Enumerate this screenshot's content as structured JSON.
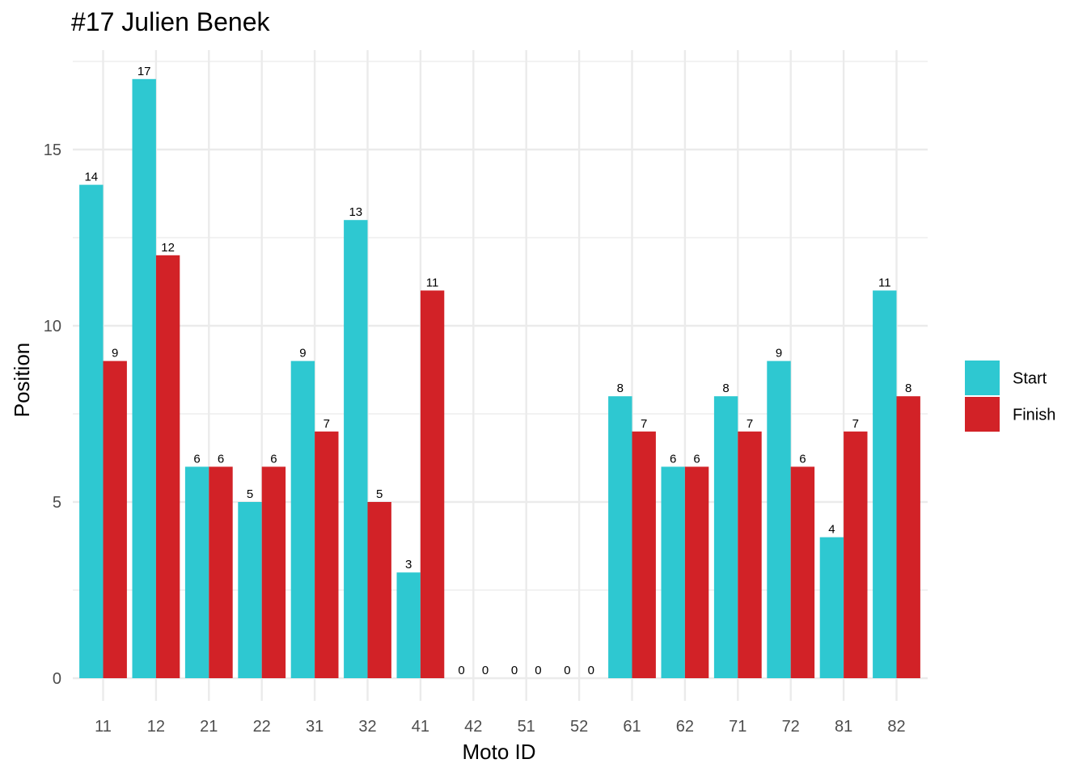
{
  "chart_data": {
    "type": "bar",
    "title": "#17 Julien Benek",
    "xlabel": "Moto ID",
    "ylabel": "Position",
    "categories": [
      "11",
      "12",
      "21",
      "22",
      "31",
      "32",
      "41",
      "42",
      "51",
      "52",
      "61",
      "62",
      "71",
      "72",
      "81",
      "82"
    ],
    "series": [
      {
        "name": "Start",
        "color": "#2EC8D1",
        "values": [
          14,
          17,
          6,
          5,
          9,
          13,
          3,
          0,
          0,
          0,
          8,
          6,
          8,
          9,
          4,
          11
        ]
      },
      {
        "name": "Finish",
        "color": "#D22227",
        "values": [
          9,
          12,
          6,
          6,
          7,
          5,
          11,
          0,
          0,
          0,
          7,
          6,
          7,
          6,
          7,
          8
        ]
      }
    ],
    "ylim": [
      0,
      17.5
    ],
    "yticks": [
      0,
      5,
      10,
      15
    ],
    "grid": true,
    "data_labels": true,
    "legend_position": "right",
    "grid_color": "#EBEBEB",
    "text_color": "#4D4D4D"
  }
}
